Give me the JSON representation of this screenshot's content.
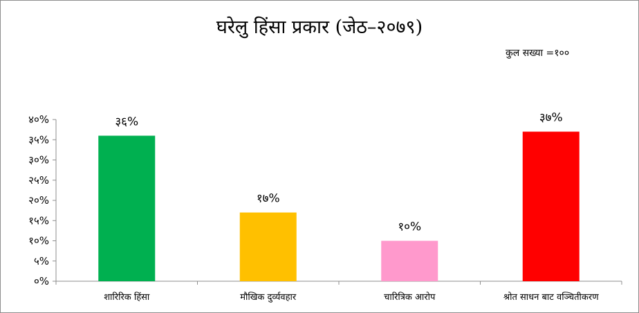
{
  "chart_data": {
    "type": "bar",
    "title": "घरेलु हिंसा प्रकार (जेठ–२०७९)",
    "note": "कुल सख्या =१००",
    "categories": [
      "शारिरिक हिंसा",
      "मौखिक दुर्व्यवहार",
      "चारित्रिक आरोप",
      "श्रोत साधन बाट वञ्चितीकरण"
    ],
    "values": [
      36,
      17,
      10,
      37
    ],
    "data_labels": [
      "३६%",
      "१७%",
      "१०%",
      "३७%"
    ],
    "colors": [
      "#00b050",
      "#ffc000",
      "#ff99cc",
      "#ff0000"
    ],
    "ylim": [
      0,
      40
    ],
    "yticks": [
      "०%",
      "५%",
      "१०%",
      "१५%",
      "२०%",
      "२५%",
      "३०%",
      "३५%",
      "४०%"
    ],
    "xlabel": "",
    "ylabel": "",
    "grid": false,
    "legend": "none"
  }
}
